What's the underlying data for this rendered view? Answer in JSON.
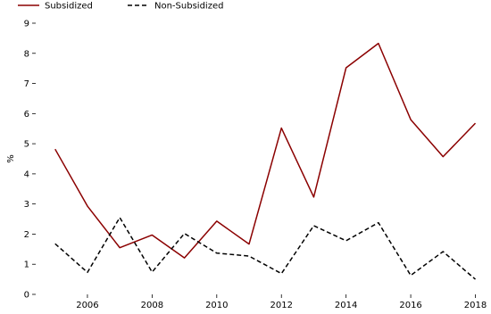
{
  "chart_data": {
    "type": "line",
    "title": "",
    "xlabel": "",
    "ylabel": "%",
    "x": [
      2005,
      2006,
      2007,
      2008,
      2009,
      2010,
      2011,
      2012,
      2013,
      2014,
      2015,
      2016,
      2017,
      2018
    ],
    "series": [
      {
        "name": "Subsidized",
        "color": "#8b0000",
        "line_style": "solid",
        "values": [
          4.82,
          2.93,
          1.55,
          1.97,
          1.21,
          2.43,
          1.67,
          5.52,
          3.23,
          7.52,
          8.33,
          5.8,
          4.57,
          5.68
        ]
      },
      {
        "name": "Non-Subsidized",
        "color": "#000000",
        "line_style": "dashed",
        "values": [
          1.68,
          0.73,
          2.55,
          0.74,
          2.02,
          1.37,
          1.27,
          0.69,
          2.28,
          1.78,
          2.38,
          0.63,
          1.42,
          0.5
        ]
      }
    ],
    "xlim": [
      2004.4,
      2018.4
    ],
    "ylim": [
      0,
      9
    ],
    "x_ticks": [
      "2006",
      "2008",
      "2010",
      "2012",
      "2014",
      "2016",
      "2018"
    ],
    "y_ticks": [
      "0",
      "1",
      "2",
      "3",
      "4",
      "5",
      "6",
      "7",
      "8",
      "9"
    ],
    "grid": false,
    "legend_position": "top-left"
  }
}
